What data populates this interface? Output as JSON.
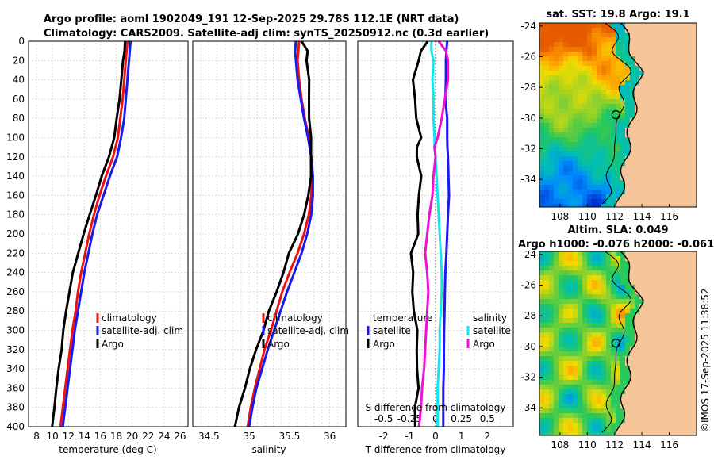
{
  "header": {
    "line1": "Argo profile: aoml 1902049_191 12-Sep-2025 29.78S 112.1E (NRT data)",
    "line2": "Climatology: CARS2009. Satellite-adj clim: synTS_20250912.nc (0.3d earlier)"
  },
  "colors": {
    "climatology": "#ee1111",
    "satellite": "#1a1aee",
    "argo": "#000000",
    "sat_salinity": "#11e5ee",
    "argo_salinity": "#ee11d4",
    "grid": "#c9c9c9",
    "land": "#f7c59a"
  },
  "chart_data": [
    {
      "type": "line",
      "xlabel": "temperature (deg C)",
      "ylabel": "",
      "xlim": [
        7,
        27
      ],
      "ylim": [
        400,
        0
      ],
      "xticks": [
        8,
        10,
        12,
        14,
        16,
        18,
        20,
        22,
        24,
        26
      ],
      "yticks": [
        0,
        20,
        40,
        60,
        80,
        100,
        120,
        140,
        160,
        180,
        200,
        220,
        240,
        260,
        280,
        300,
        320,
        340,
        360,
        380,
        400
      ],
      "depth": [
        0,
        10,
        20,
        40,
        60,
        80,
        100,
        120,
        140,
        160,
        180,
        200,
        220,
        240,
        260,
        280,
        300,
        320,
        340,
        360,
        380,
        400
      ],
      "series": [
        {
          "name": "climatology",
          "values": [
            19.4,
            19.3,
            19.2,
            19.0,
            18.8,
            18.5,
            18.2,
            17.6,
            16.7,
            15.9,
            15.2,
            14.6,
            14.1,
            13.6,
            13.2,
            12.9,
            12.5,
            12.2,
            11.9,
            11.6,
            11.3,
            11.0
          ]
        },
        {
          "name": "satellite-adj. clim",
          "values": [
            19.8,
            19.7,
            19.6,
            19.4,
            19.2,
            19.0,
            18.6,
            18.1,
            17.2,
            16.4,
            15.6,
            15.0,
            14.5,
            14.0,
            13.6,
            13.2,
            12.8,
            12.5,
            12.2,
            11.9,
            11.6,
            11.3
          ]
        },
        {
          "name": "Argo",
          "values": [
            19.1,
            19.0,
            18.9,
            18.6,
            18.4,
            18.1,
            17.7,
            17.1,
            16.2,
            15.4,
            14.7,
            13.9,
            13.2,
            12.6,
            12.1,
            11.7,
            11.4,
            11.1,
            10.8,
            10.5,
            10.2,
            10.0
          ]
        }
      ]
    },
    {
      "type": "line",
      "xlabel": "salinity",
      "xlim": [
        34.3,
        36.2
      ],
      "ylim": [
        400,
        0
      ],
      "xticks": [
        34.5,
        35,
        35.5,
        36
      ],
      "depth": [
        0,
        10,
        20,
        40,
        60,
        80,
        100,
        110,
        120,
        140,
        160,
        180,
        200,
        220,
        240,
        260,
        280,
        300,
        320,
        340,
        360,
        380,
        400
      ],
      "series": [
        {
          "name": "climatology",
          "values": [
            35.62,
            35.61,
            35.6,
            35.62,
            35.65,
            35.69,
            35.74,
            35.76,
            35.77,
            35.78,
            35.77,
            35.74,
            35.68,
            35.6,
            35.5,
            35.41,
            35.34,
            35.27,
            35.19,
            35.13,
            35.07,
            35.02,
            34.98
          ]
        },
        {
          "name": "satellite-adj. clim",
          "values": [
            35.58,
            35.57,
            35.58,
            35.6,
            35.64,
            35.68,
            35.73,
            35.75,
            35.77,
            35.79,
            35.79,
            35.77,
            35.72,
            35.65,
            35.56,
            35.47,
            35.39,
            35.31,
            35.23,
            35.16,
            35.09,
            35.04,
            35.0
          ]
        },
        {
          "name": "Argo",
          "values": [
            35.65,
            35.72,
            35.72,
            35.74,
            35.74,
            35.75,
            35.76,
            35.77,
            35.77,
            35.76,
            35.74,
            35.68,
            35.6,
            35.5,
            35.42,
            35.34,
            35.25,
            35.17,
            35.09,
            35.01,
            34.94,
            34.88,
            34.82
          ]
        }
      ],
      "legend": [
        "climatology",
        "satellite-adj. clim",
        "Argo"
      ]
    },
    {
      "type": "line",
      "xlabel": "T difference from climatology",
      "top_axis_label": "S difference from climatology",
      "xlim": [
        -3,
        3
      ],
      "ylim": [
        400,
        0
      ],
      "xticks": [
        -2,
        -1,
        0,
        1,
        2
      ],
      "s_xticks": [
        "-0.5",
        "-0.25",
        "0",
        "0.25",
        "0.5"
      ],
      "depth": [
        0,
        10,
        20,
        40,
        60,
        80,
        100,
        110,
        120,
        140,
        160,
        180,
        200,
        220,
        240,
        260,
        280,
        300,
        320,
        340,
        360,
        380,
        400
      ],
      "series": [
        {
          "name": "temperature satellite",
          "values": [
            0.45,
            0.42,
            0.4,
            0.4,
            0.38,
            0.45,
            0.45,
            0.46,
            0.48,
            0.5,
            0.52,
            0.48,
            0.45,
            0.42,
            0.38,
            0.36,
            0.35,
            0.33,
            0.32,
            0.32,
            0.3,
            0.3,
            0.3
          ]
        },
        {
          "name": "temperature Argo",
          "values": [
            -0.3,
            -0.6,
            -0.6,
            -0.9,
            -0.8,
            -0.7,
            -0.6,
            -0.7,
            -0.7,
            -0.6,
            -0.6,
            -0.7,
            -0.7,
            -0.9,
            -0.9,
            -0.9,
            -0.8,
            -0.75,
            -0.7,
            -0.7,
            -0.7,
            -0.75,
            -0.8
          ]
        },
        {
          "name": "salinity satellite",
          "values": [
            -0.04,
            -0.04,
            -0.02,
            -0.03,
            -0.02,
            -0.02,
            -0.01,
            -0.01,
            0.0,
            0.01,
            0.02,
            0.03,
            0.04,
            0.05,
            0.06,
            0.06,
            0.05,
            0.04,
            0.04,
            0.03,
            0.02,
            0.02,
            0.02
          ]
        },
        {
          "name": "salinity Argo",
          "values": [
            0.03,
            0.1,
            0.12,
            0.12,
            0.09,
            0.06,
            0.02,
            -0.01,
            0.0,
            -0.02,
            -0.03,
            -0.06,
            -0.08,
            -0.1,
            -0.08,
            -0.07,
            -0.08,
            -0.09,
            -0.1,
            -0.11,
            -0.13,
            -0.14,
            -0.16
          ]
        }
      ],
      "legend": {
        "temperature_title": "temperature",
        "salinity_title": "salinity",
        "satellite": "satellite",
        "argo": "Argo"
      }
    },
    {
      "type": "heatmap",
      "title": "sat. SST: 19.8 Argo: 19.1",
      "xlim": [
        106.5,
        118
      ],
      "ylim": [
        -35.8,
        -23.8
      ],
      "xticks": [
        108,
        110,
        112,
        114,
        116
      ],
      "yticks": [
        -24,
        -26,
        -28,
        -30,
        -32,
        -34
      ],
      "argo_position": [
        112.1,
        -29.78
      ]
    },
    {
      "type": "heatmap",
      "title": "Altim. SLA: 0.049",
      "subtitle": "Argo h1000: -0.076 h2000: -0.061",
      "xlim": [
        106.5,
        118
      ],
      "ylim": [
        -35.8,
        -23.8
      ],
      "xticks": [
        108,
        110,
        112,
        114,
        116
      ],
      "yticks": [
        -24,
        -26,
        -28,
        -30,
        -32,
        -34
      ],
      "argo_position": [
        112.1,
        -29.78
      ]
    }
  ],
  "watermark": "©IMOS 17-Sep-2025 11:38:52"
}
